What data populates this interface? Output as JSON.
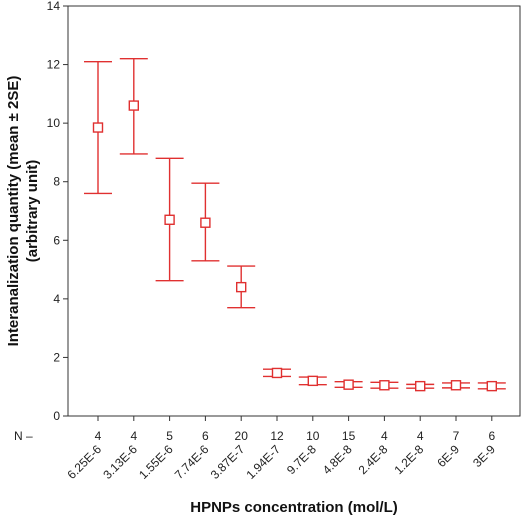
{
  "chart_data": {
    "type": "scatter",
    "title": "",
    "xlabel": "HPNPs concentration (mol/L)",
    "ylabel": "Interanalization quantity (mean ± 2SE)",
    "ylabel_unit": "(arbitrary unit)",
    "ylim": [
      0,
      14
    ],
    "yticks": [
      0,
      2,
      4,
      6,
      8,
      10,
      12,
      14
    ],
    "grid": false,
    "n_prefix": "N –",
    "color": "#e03030",
    "categories": [
      "6.25E-6",
      "3.13E-6",
      "1.55E-6",
      "7.74E-6",
      "3.87E-7",
      "1.94E-7",
      "9.7E-8",
      "4.8E-8",
      "2.4E-8",
      "1.2E-8",
      "6E-9",
      "3E-9"
    ],
    "n": [
      "4",
      "4",
      "5",
      "6",
      "20",
      "12",
      "10",
      "15",
      "4",
      "4",
      "7",
      "6"
    ],
    "values": [
      9.85,
      10.6,
      6.7,
      6.6,
      4.4,
      1.47,
      1.2,
      1.07,
      1.05,
      1.02,
      1.05,
      1.02
    ],
    "err_low": [
      7.6,
      8.95,
      4.62,
      5.3,
      3.7,
      1.35,
      1.07,
      0.98,
      0.95,
      0.95,
      0.96,
      0.93
    ],
    "err_high": [
      12.1,
      12.2,
      8.8,
      7.95,
      5.12,
      1.6,
      1.33,
      1.17,
      1.15,
      1.08,
      1.13,
      1.13
    ]
  }
}
